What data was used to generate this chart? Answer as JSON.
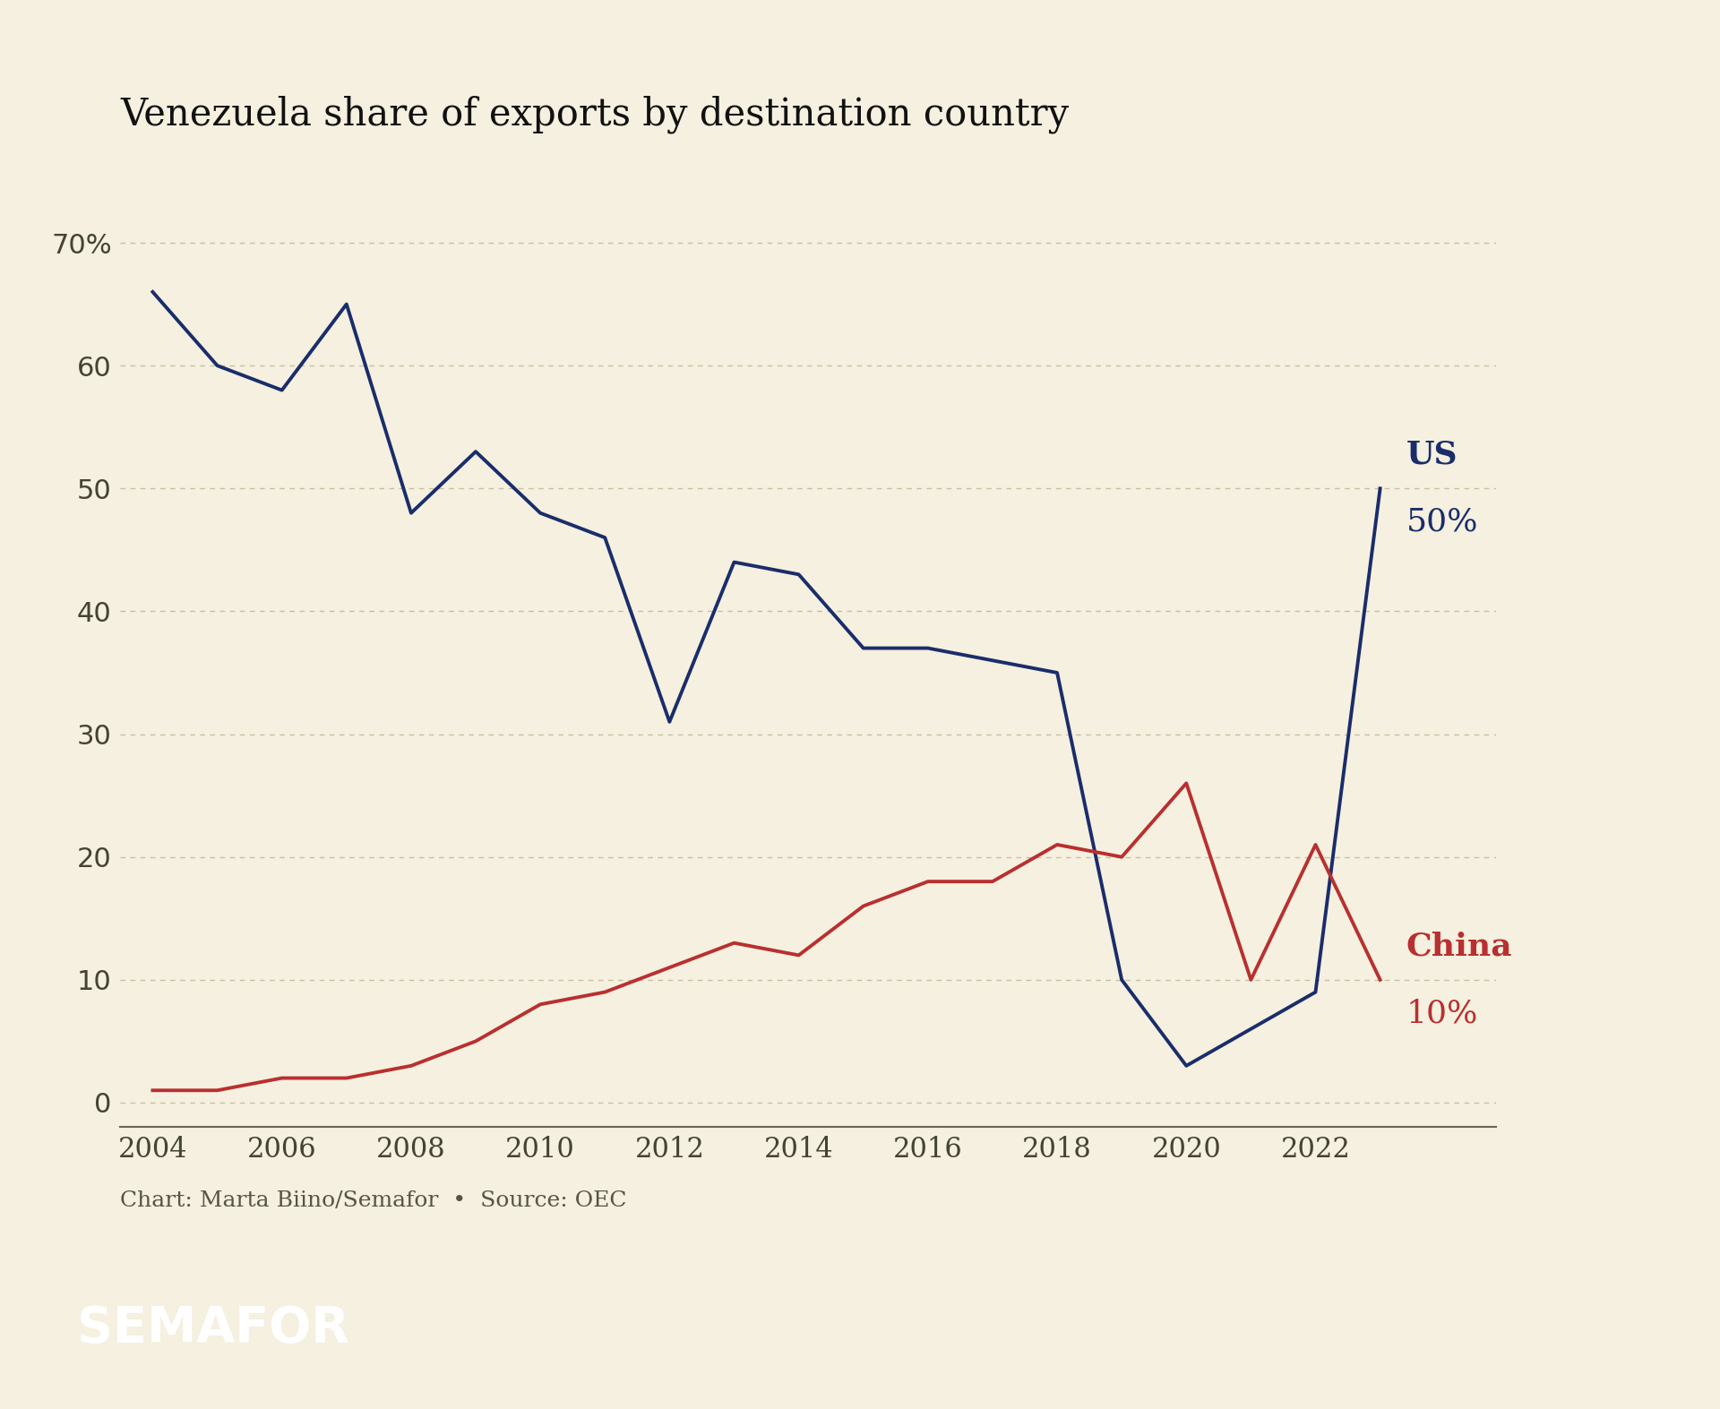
{
  "title": "Venezuela share of exports by destination country",
  "background_color": "#f5f0df",
  "us_color": "#1a2d6b",
  "china_color": "#b83030",
  "us_years": [
    2004,
    2005,
    2006,
    2007,
    2008,
    2009,
    2010,
    2011,
    2012,
    2013,
    2014,
    2015,
    2016,
    2017,
    2018,
    2019,
    2020,
    2021,
    2022,
    2023
  ],
  "us_values": [
    66,
    60,
    58,
    65,
    48,
    53,
    48,
    46,
    31,
    44,
    43,
    37,
    37,
    36,
    35,
    10,
    3,
    6,
    9,
    50
  ],
  "china_years": [
    2004,
    2005,
    2006,
    2007,
    2008,
    2009,
    2010,
    2011,
    2012,
    2013,
    2014,
    2015,
    2016,
    2017,
    2018,
    2019,
    2020,
    2021,
    2022,
    2023
  ],
  "china_values": [
    1,
    1,
    2,
    2,
    3,
    5,
    8,
    9,
    11,
    13,
    12,
    16,
    18,
    18,
    21,
    20,
    26,
    10,
    21,
    10
  ],
  "us_label": "US",
  "us_pct_label": "50%",
  "china_label": "China",
  "china_pct_label": "10%",
  "yticks": [
    0,
    10,
    20,
    30,
    40,
    50,
    60,
    70
  ],
  "xticks": [
    2004,
    2006,
    2008,
    2010,
    2012,
    2014,
    2016,
    2018,
    2020,
    2022
  ],
  "ylim": [
    -2,
    76
  ],
  "xlim": [
    2003.5,
    2024.8
  ],
  "footer_text": "Chart: Marta Biino/Semafor  •  Source: OEC",
  "semafor_label": "SEMAFOR",
  "semafor_bg": "#111111",
  "line_width": 2.8,
  "grid_color": "#c8c0a0",
  "axis_color": "#666655",
  "tick_color": "#444433",
  "title_fontsize": 30,
  "tick_fontsize": 22,
  "label_fontsize": 26,
  "footer_fontsize": 18
}
